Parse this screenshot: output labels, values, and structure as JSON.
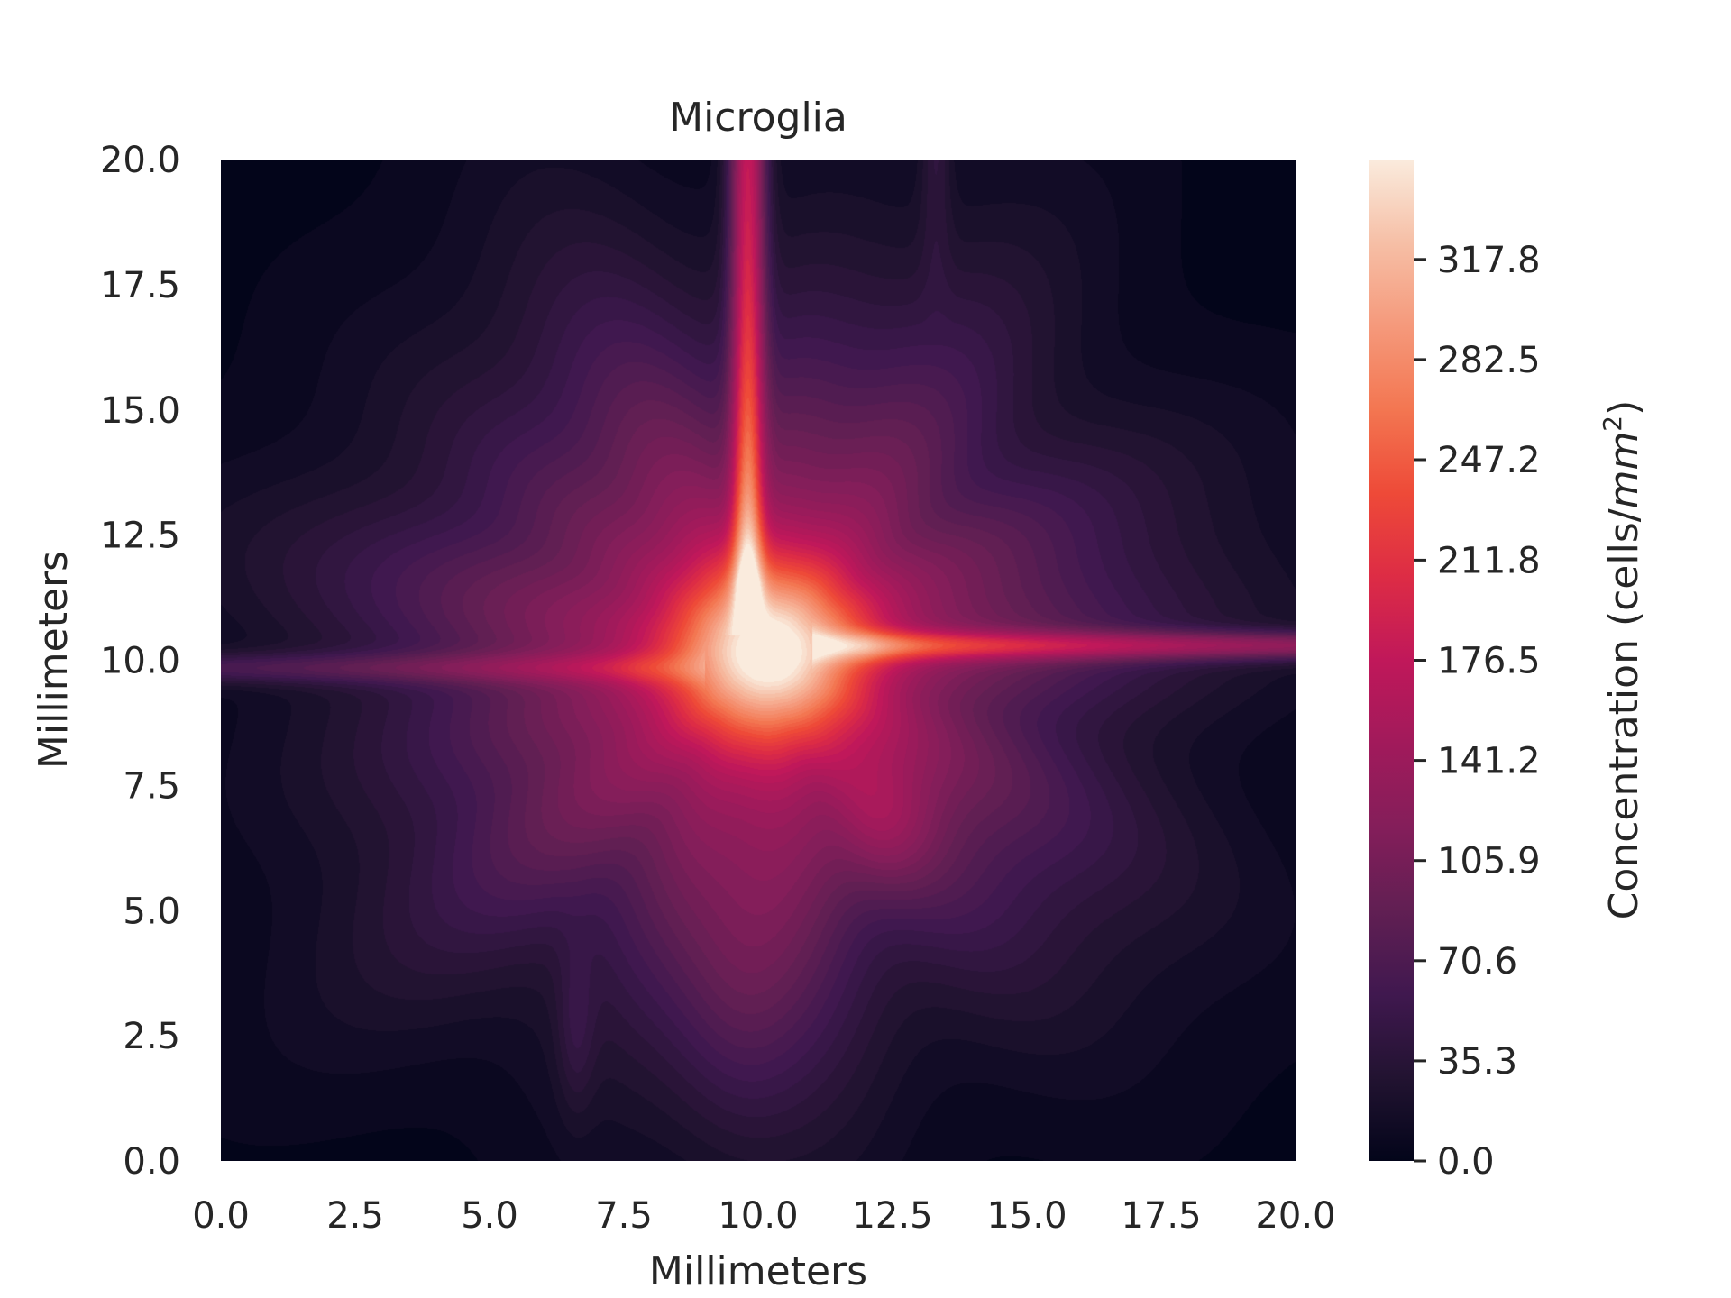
{
  "chart_data": {
    "type": "heatmap",
    "title": "Microglia",
    "xlabel": "Millimeters",
    "ylabel": "Millimeters",
    "xlim": [
      0,
      20
    ],
    "ylim": [
      0,
      20
    ],
    "x_ticks": [
      "0.0",
      "2.5",
      "5.0",
      "7.5",
      "10.0",
      "12.5",
      "15.0",
      "17.5",
      "20.0"
    ],
    "y_ticks": [
      "0.0",
      "2.5",
      "5.0",
      "7.5",
      "10.0",
      "12.5",
      "15.0",
      "17.5",
      "20.0"
    ],
    "grid": false,
    "colorbar": {
      "label_prefix": "Concentration (cells/",
      "label_unit": "mm",
      "label_sup": "2",
      "label_suffix": ")",
      "range": [
        0,
        353
      ],
      "ticks": [
        "0.0",
        "35.3",
        "70.6",
        "105.9",
        "141.2",
        "176.5",
        "211.8",
        "247.2",
        "282.5",
        "317.8"
      ],
      "colormap": "rocket",
      "colormap_stops": [
        "#03051a",
        "#221331",
        "#40184f",
        "#611f53",
        "#841e5a",
        "#a11a5b",
        "#c0185a",
        "#dd2c45",
        "#ee4a38",
        "#f37651",
        "#f5997b",
        "#f6bfa6",
        "#faebdd"
      ]
    },
    "peak": {
      "x": 10.2,
      "y": 10.2,
      "value": 353
    },
    "features": [
      {
        "kind": "vertical-ridge",
        "x": 9.8,
        "y_range": [
          11,
          20
        ],
        "value": 220
      },
      {
        "kind": "horizontal-ridge",
        "y": 9.9,
        "x_range": [
          0,
          8.5
        ],
        "value": 120
      },
      {
        "kind": "horizontal-ridge",
        "y": 10.3,
        "x_range": [
          11.5,
          20
        ],
        "value": 165
      },
      {
        "kind": "broad-halo",
        "center": [
          10,
          10
        ],
        "value_at_edge": 60
      },
      {
        "kind": "faint-streak",
        "x": 13.3,
        "y_range": [
          17,
          20
        ],
        "value": 40
      }
    ]
  }
}
